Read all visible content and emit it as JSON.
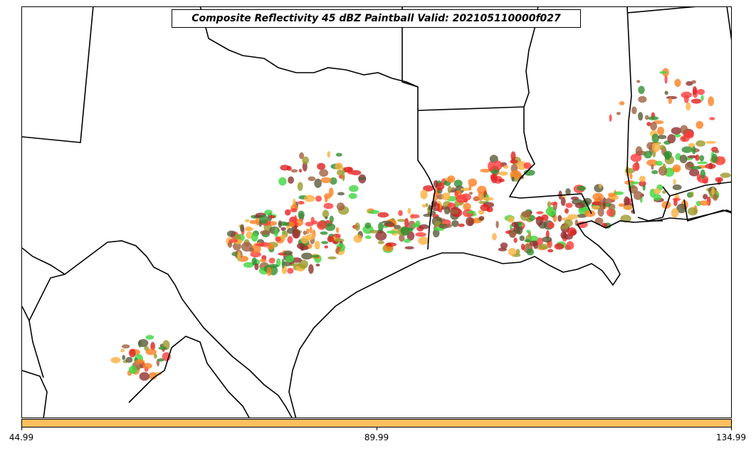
{
  "title": "Composite Reflectivity 45 dBZ Paintball Valid: 202105110000f027",
  "colorbar": {
    "color": "#fdbf5f",
    "ticks": [
      "44.99",
      "89.99",
      "134.99"
    ]
  },
  "member_colors": [
    "#ff3b3b",
    "#e02020",
    "#fdb040",
    "#ff8020",
    "#3fd63f",
    "#2f8f2f",
    "#9a9a2a",
    "#8f2f2f",
    "#5a5a3a",
    "#a06040"
  ]
}
